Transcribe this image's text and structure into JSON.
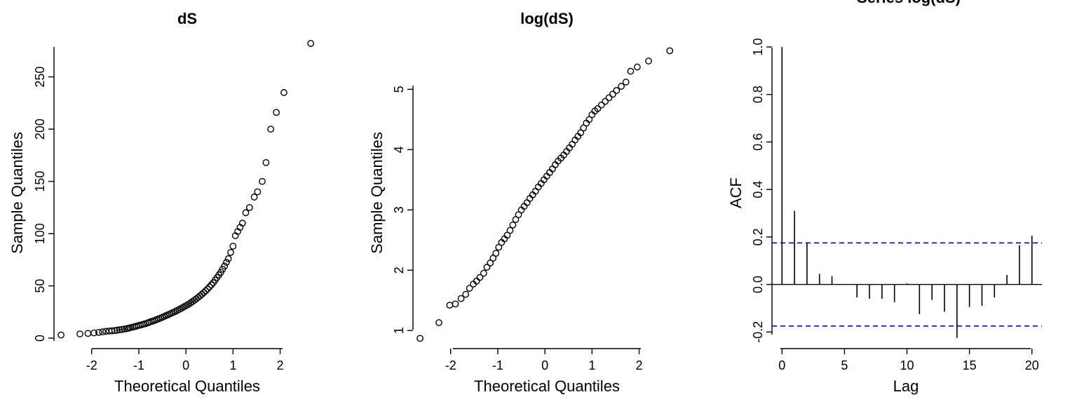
{
  "chart_data": [
    {
      "type": "scatter",
      "title": "dS",
      "xlabel": "Theoretical Quantiles",
      "ylabel": "Sample Quantiles",
      "xlim": [
        -2.8,
        2.9
      ],
      "ylim": [
        -10,
        290
      ],
      "xticks": [
        -2,
        -1,
        0,
        1,
        2
      ],
      "yticks": [
        0,
        50,
        100,
        150,
        200,
        250
      ],
      "points": [
        [
          -2.65,
          3
        ],
        [
          -2.25,
          4
        ],
        [
          -2.08,
          4.5
        ],
        [
          -1.95,
          5
        ],
        [
          -1.85,
          5.5
        ],
        [
          -1.77,
          6
        ],
        [
          -1.7,
          6.5
        ],
        [
          -1.63,
          6.8
        ],
        [
          -1.57,
          7
        ],
        [
          -1.51,
          7.3
        ],
        [
          -1.46,
          7.6
        ],
        [
          -1.41,
          8
        ],
        [
          -1.36,
          8.3
        ],
        [
          -1.31,
          8.7
        ],
        [
          -1.26,
          9
        ],
        [
          -1.22,
          9.5
        ],
        [
          -1.18,
          10
        ],
        [
          -1.13,
          10.5
        ],
        [
          -1.09,
          11
        ],
        [
          -1.05,
          11.5
        ],
        [
          -1.01,
          12
        ],
        [
          -0.97,
          12.5
        ],
        [
          -0.93,
          13
        ],
        [
          -0.89,
          13.5
        ],
        [
          -0.85,
          14
        ],
        [
          -0.81,
          14.6
        ],
        [
          -0.78,
          15.2
        ],
        [
          -0.74,
          15.8
        ],
        [
          -0.7,
          16.4
        ],
        [
          -0.66,
          17
        ],
        [
          -0.62,
          17.8
        ],
        [
          -0.58,
          18.5
        ],
        [
          -0.54,
          19.2
        ],
        [
          -0.5,
          20
        ],
        [
          -0.46,
          20.8
        ],
        [
          -0.42,
          21.6
        ],
        [
          -0.38,
          22.4
        ],
        [
          -0.34,
          23.2
        ],
        [
          -0.3,
          24
        ],
        [
          -0.26,
          24.8
        ],
        [
          -0.22,
          25.7
        ],
        [
          -0.18,
          26.6
        ],
        [
          -0.14,
          27.5
        ],
        [
          -0.1,
          28.5
        ],
        [
          -0.06,
          29.5
        ],
        [
          -0.02,
          30.5
        ],
        [
          0.02,
          31.5
        ],
        [
          0.06,
          32.6
        ],
        [
          0.1,
          33.8
        ],
        [
          0.14,
          35
        ],
        [
          0.18,
          36.3
        ],
        [
          0.22,
          37.6
        ],
        [
          0.26,
          39
        ],
        [
          0.3,
          40.5
        ],
        [
          0.34,
          42
        ],
        [
          0.38,
          43.6
        ],
        [
          0.42,
          45.3
        ],
        [
          0.46,
          47
        ],
        [
          0.5,
          49
        ],
        [
          0.54,
          51
        ],
        [
          0.58,
          53
        ],
        [
          0.62,
          55.5
        ],
        [
          0.66,
          58
        ],
        [
          0.7,
          60.5
        ],
        [
          0.74,
          63
        ],
        [
          0.78,
          66
        ],
        [
          0.82,
          69
        ],
        [
          0.86,
          72.5
        ],
        [
          0.9,
          76
        ],
        [
          0.95,
          82
        ],
        [
          1.0,
          88
        ],
        [
          1.05,
          98
        ],
        [
          1.1,
          102
        ],
        [
          1.15,
          106
        ],
        [
          1.2,
          110
        ],
        [
          1.27,
          120
        ],
        [
          1.35,
          125
        ],
        [
          1.45,
          135
        ],
        [
          1.52,
          140
        ],
        [
          1.62,
          150
        ],
        [
          1.7,
          168
        ],
        [
          1.8,
          200
        ],
        [
          1.92,
          216
        ],
        [
          2.08,
          235
        ],
        [
          2.65,
          282
        ]
      ]
    },
    {
      "type": "scatter",
      "title": "log(dS)",
      "xlabel": "Theoretical Quantiles",
      "ylabel": "Sample Quantiles",
      "xlim": [
        -2.8,
        2.9
      ],
      "ylim": [
        0.7,
        5.9
      ],
      "xticks": [
        -2,
        -1,
        0,
        1,
        2
      ],
      "yticks": [
        1,
        2,
        3,
        4,
        5
      ],
      "points": [
        [
          -2.65,
          0.87
        ],
        [
          -2.25,
          1.13
        ],
        [
          -2.02,
          1.42
        ],
        [
          -1.9,
          1.44
        ],
        [
          -1.78,
          1.53
        ],
        [
          -1.68,
          1.6
        ],
        [
          -1.6,
          1.7
        ],
        [
          -1.52,
          1.77
        ],
        [
          -1.45,
          1.82
        ],
        [
          -1.38,
          1.88
        ],
        [
          -1.3,
          1.95
        ],
        [
          -1.23,
          2.05
        ],
        [
          -1.16,
          2.12
        ],
        [
          -1.1,
          2.2
        ],
        [
          -1.04,
          2.28
        ],
        [
          -0.98,
          2.38
        ],
        [
          -0.92,
          2.46
        ],
        [
          -0.86,
          2.52
        ],
        [
          -0.8,
          2.58
        ],
        [
          -0.74,
          2.66
        ],
        [
          -0.68,
          2.75
        ],
        [
          -0.62,
          2.84
        ],
        [
          -0.56,
          2.92
        ],
        [
          -0.5,
          3.0
        ],
        [
          -0.44,
          3.06
        ],
        [
          -0.38,
          3.12
        ],
        [
          -0.32,
          3.19
        ],
        [
          -0.26,
          3.25
        ],
        [
          -0.2,
          3.31
        ],
        [
          -0.14,
          3.38
        ],
        [
          -0.08,
          3.44
        ],
        [
          -0.02,
          3.5
        ],
        [
          0.04,
          3.56
        ],
        [
          0.1,
          3.62
        ],
        [
          0.16,
          3.68
        ],
        [
          0.22,
          3.75
        ],
        [
          0.28,
          3.81
        ],
        [
          0.34,
          3.86
        ],
        [
          0.4,
          3.91
        ],
        [
          0.46,
          3.97
        ],
        [
          0.52,
          4.03
        ],
        [
          0.58,
          4.09
        ],
        [
          0.64,
          4.16
        ],
        [
          0.7,
          4.22
        ],
        [
          0.76,
          4.28
        ],
        [
          0.82,
          4.36
        ],
        [
          0.88,
          4.44
        ],
        [
          0.94,
          4.5
        ],
        [
          1.0,
          4.58
        ],
        [
          1.06,
          4.64
        ],
        [
          1.12,
          4.68
        ],
        [
          1.2,
          4.74
        ],
        [
          1.28,
          4.8
        ],
        [
          1.36,
          4.86
        ],
        [
          1.44,
          4.92
        ],
        [
          1.52,
          4.98
        ],
        [
          1.62,
          5.05
        ],
        [
          1.72,
          5.12
        ],
        [
          1.82,
          5.3
        ],
        [
          1.96,
          5.37
        ],
        [
          2.2,
          5.47
        ],
        [
          2.65,
          5.64
        ]
      ]
    },
    {
      "type": "bar",
      "title": "Series  log(dS)",
      "xlabel": "Lag",
      "ylabel": "ACF",
      "xlim": [
        -0.8,
        20.8
      ],
      "ylim": [
        -0.27,
        1.05
      ],
      "xticks": [
        0,
        5,
        10,
        15,
        20
      ],
      "yticks": [
        -0.2,
        0.0,
        0.2,
        0.4,
        0.6,
        0.8,
        1.0
      ],
      "lags": [
        0,
        1,
        2,
        3,
        4,
        5,
        6,
        7,
        8,
        9,
        10,
        11,
        12,
        13,
        14,
        15,
        16,
        17,
        18,
        19,
        20
      ],
      "values": [
        1.0,
        0.31,
        0.175,
        0.045,
        0.035,
        0.0,
        -0.055,
        -0.06,
        -0.06,
        -0.075,
        0.005,
        -0.125,
        -0.065,
        -0.115,
        -0.225,
        -0.095,
        -0.09,
        -0.055,
        0.04,
        0.165,
        0.205
      ],
      "ci": 0.175,
      "ci_color": "#0000cc"
    }
  ]
}
